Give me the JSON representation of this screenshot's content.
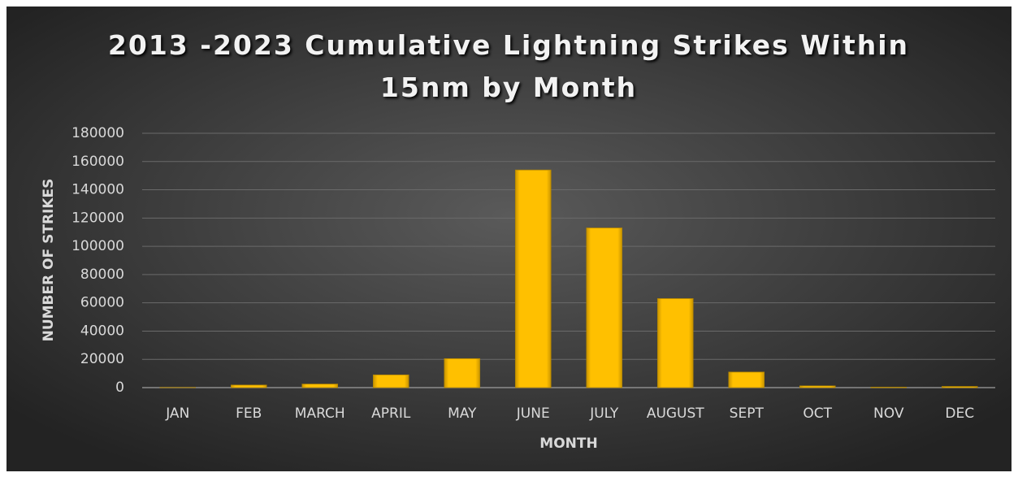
{
  "chart_data": {
    "type": "bar",
    "title": "2013 -2023 Cumulative Lightning Strikes Within 15nm by Month",
    "x_label": "MONTH",
    "y_label": "NUMBER OF STRIKES",
    "categories": [
      "JAN",
      "FEB",
      "MARCH",
      "APRIL",
      "MAY",
      "JUNE",
      "JULY",
      "AUGUST",
      "SEPT",
      "OCT",
      "NOV",
      "DEC"
    ],
    "values": [
      100,
      1800,
      2500,
      9000,
      20500,
      154000,
      113000,
      63000,
      11000,
      1200,
      300,
      800
    ],
    "color": "#ffc000",
    "ylim": [
      0,
      180000
    ],
    "yticks": [
      0,
      20000,
      40000,
      60000,
      80000,
      100000,
      120000,
      140000,
      160000,
      180000
    ],
    "grid": true
  }
}
